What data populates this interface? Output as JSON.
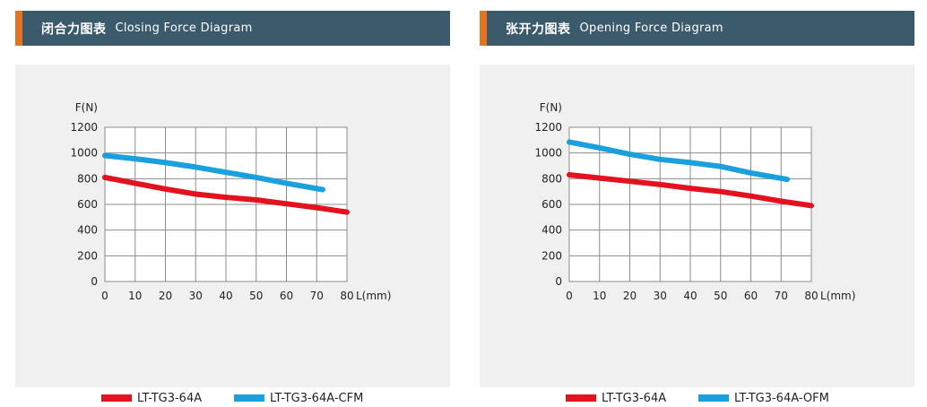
{
  "panels": [
    {
      "title_cn": "闭合力图表",
      "title_en": "Closing Force Diagram",
      "legend": [
        {
          "label": "LT-TG3-64A",
          "color": "#e3121e"
        },
        {
          "label": "LT-TG3-64A-CFM",
          "color": "#1aa0dc"
        }
      ]
    },
    {
      "title_cn": "张开力图表",
      "title_en": "Opening Force Diagram",
      "legend": [
        {
          "label": "LT-TG3-64A",
          "color": "#e3121e"
        },
        {
          "label": "LT-TG3-64A-OFM",
          "color": "#1aa0dc"
        }
      ]
    }
  ],
  "chart_data": [
    {
      "type": "line",
      "title": "Closing Force Diagram",
      "ylabel": "F(N)",
      "xlabel": "L(mm)",
      "xlim": [
        0,
        80
      ],
      "ylim": [
        0,
        1200
      ],
      "xticks": [
        "0",
        "10",
        "20",
        "30",
        "40",
        "50",
        "60",
        "70",
        "80"
      ],
      "yticks": [
        "0",
        "200",
        "400",
        "600",
        "800",
        "1000",
        "1200"
      ],
      "grid": true,
      "legend_position": "bottom",
      "series": [
        {
          "name": "LT-TG3-64A",
          "color": "#e3121e",
          "x": [
            0,
            10,
            20,
            30,
            40,
            50,
            60,
            70,
            80
          ],
          "y": [
            810,
            765,
            720,
            680,
            655,
            635,
            605,
            575,
            540
          ]
        },
        {
          "name": "LT-TG3-64A-CFM",
          "color": "#1aa0dc",
          "x": [
            0,
            10,
            20,
            30,
            40,
            50,
            60,
            72
          ],
          "y": [
            980,
            955,
            925,
            890,
            850,
            810,
            765,
            715
          ]
        }
      ]
    },
    {
      "type": "line",
      "title": "Opening Force Diagram",
      "ylabel": "F(N)",
      "xlabel": "L(mm)",
      "xlim": [
        0,
        80
      ],
      "ylim": [
        0,
        1200
      ],
      "xticks": [
        "0",
        "10",
        "20",
        "30",
        "40",
        "50",
        "60",
        "70",
        "80"
      ],
      "yticks": [
        "0",
        "200",
        "400",
        "600",
        "800",
        "1000",
        "1200"
      ],
      "grid": true,
      "legend_position": "bottom",
      "series": [
        {
          "name": "LT-TG3-64A",
          "color": "#e3121e",
          "x": [
            0,
            10,
            20,
            30,
            40,
            50,
            60,
            70,
            80
          ],
          "y": [
            830,
            805,
            780,
            755,
            725,
            700,
            665,
            625,
            590
          ]
        },
        {
          "name": "LT-TG3-64A-OFM",
          "color": "#1aa0dc",
          "x": [
            0,
            10,
            20,
            30,
            40,
            50,
            60,
            72
          ],
          "y": [
            1085,
            1040,
            990,
            950,
            925,
            895,
            845,
            795
          ]
        }
      ]
    }
  ]
}
